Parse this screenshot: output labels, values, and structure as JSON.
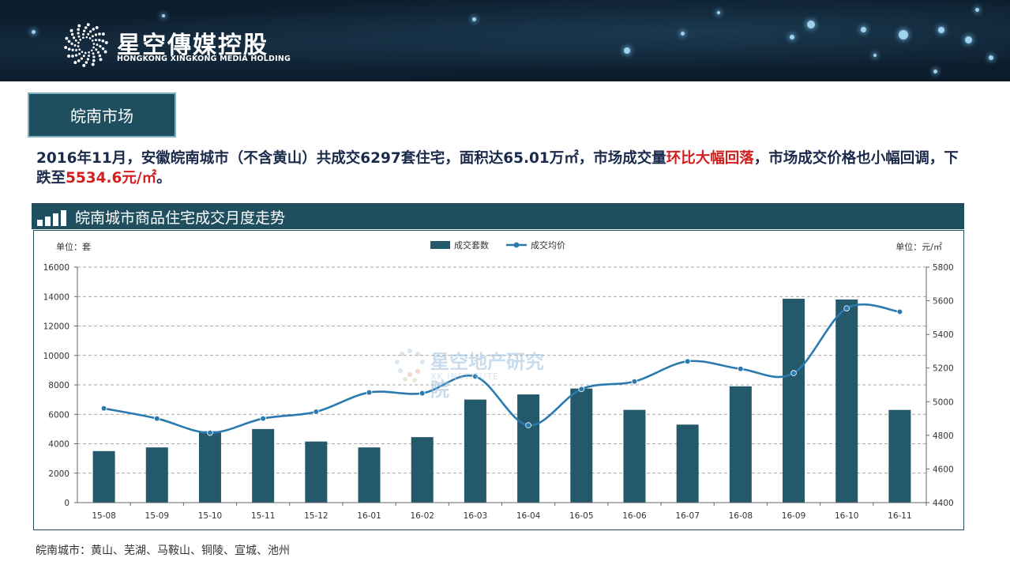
{
  "header": {
    "logo_cn": "星空傳媒控股",
    "logo_en": "HONGKONG XINGKONG MEDIA HOLDING",
    "logo_icon": "starburst-logo-icon"
  },
  "section_tag": "皖南市场",
  "summary": {
    "part1": "2016年11月，安徽皖南城市（不含黄山）共成交6297套住宅，面积达65.01万㎡，市场成交量",
    "highlight1": "环比大幅回落",
    "part2": "，市场成交价格也小幅回调，下跌至",
    "highlight2": "5534.6元/㎡",
    "part3": "。"
  },
  "chart_title": "皖南城市商品住宅成交月度走势",
  "watermark": {
    "text": "星空地产研究院",
    "sub": "XK INSTITUTE"
  },
  "footnote": "皖南城市：黄山、芜湖、马鞍山、铜陵、宣城、池州",
  "chart_data": {
    "type": "bar",
    "title": "皖南城市商品住宅成交月度走势",
    "categories": [
      "15-08",
      "15-09",
      "15-10",
      "15-11",
      "15-12",
      "16-01",
      "16-02",
      "16-03",
      "16-04",
      "16-05",
      "16-06",
      "16-07",
      "16-08",
      "16-09",
      "16-10",
      "16-11"
    ],
    "series": [
      {
        "name": "成交套数",
        "type": "bar",
        "axis": "left",
        "color": "#24596b",
        "values": [
          3500,
          3750,
          4850,
          5000,
          4150,
          3750,
          4450,
          7000,
          7350,
          7750,
          6300,
          5300,
          7900,
          13850,
          13800,
          6297
        ]
      },
      {
        "name": "成交均价",
        "type": "line",
        "axis": "right",
        "color": "#2a7ab0",
        "values": [
          4960,
          4900,
          4815,
          4900,
          4940,
          5055,
          5050,
          5150,
          4860,
          5075,
          5120,
          5240,
          5195,
          5170,
          5555,
          5534.6
        ]
      }
    ],
    "left_axis": {
      "label": "单位：套",
      "min": 0,
      "max": 16000,
      "step": 2000,
      "ticks": [
        "0",
        "2000",
        "4000",
        "6000",
        "8000",
        "10000",
        "12000",
        "14000",
        "16000"
      ]
    },
    "right_axis": {
      "label": "单位：元/㎡",
      "min": 4400,
      "max": 5800,
      "step": 200,
      "ticks": [
        "4400",
        "4600",
        "4800",
        "5000",
        "5200",
        "5400",
        "5600",
        "5800"
      ]
    },
    "legend": {
      "position": "top-center",
      "bar_label": "成交套数",
      "line_label": "成交均价"
    },
    "grid": true
  }
}
